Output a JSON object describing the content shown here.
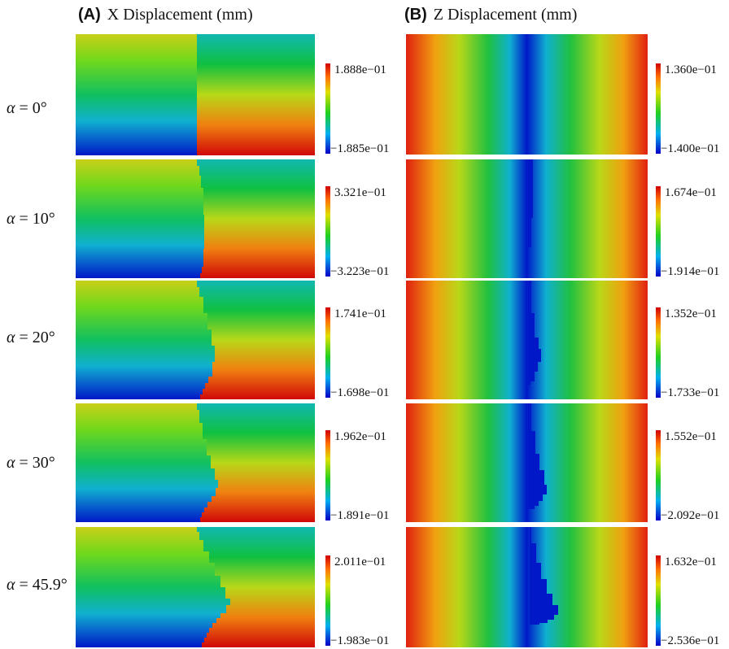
{
  "panels": [
    {
      "id": "A",
      "letter": "(A)",
      "title": "X Displacement (mm)",
      "rows": [
        {
          "label_var": "α",
          "label_value": "= 0°",
          "max": "1.888e−01",
          "min": "−1.885e−01"
        },
        {
          "label_var": "α",
          "label_value": "= 10°",
          "max": "3.321e−01",
          "min": "−3.223e−01"
        },
        {
          "label_var": "α",
          "label_value": "= 20°",
          "max": "1.741e−01",
          "min": "−1.698e−01"
        },
        {
          "label_var": "α",
          "label_value": "= 30°",
          "max": "1.962e−01",
          "min": "−1.891e−01"
        },
        {
          "label_var": "α",
          "label_value": "= 45.9°",
          "max": "2.011e−01",
          "min": "−1.983e−01"
        }
      ]
    },
    {
      "id": "B",
      "letter": "(B)",
      "title": "Z Displacement (mm)",
      "rows": [
        {
          "max": "1.360e−01",
          "min": "−1.400e−01"
        },
        {
          "max": "1.674e−01",
          "min": "−1.914e−01"
        },
        {
          "max": "1.352e−01",
          "min": "−1.733e−01"
        },
        {
          "max": "1.552e−01",
          "min": "−2.092e−01"
        },
        {
          "max": "1.632e−01",
          "min": "−2.536e−01"
        }
      ]
    }
  ],
  "colormap": [
    "#0000c8",
    "#00b0f0",
    "#20d020",
    "#e0e000",
    "#ff7000",
    "#d00000"
  ]
}
